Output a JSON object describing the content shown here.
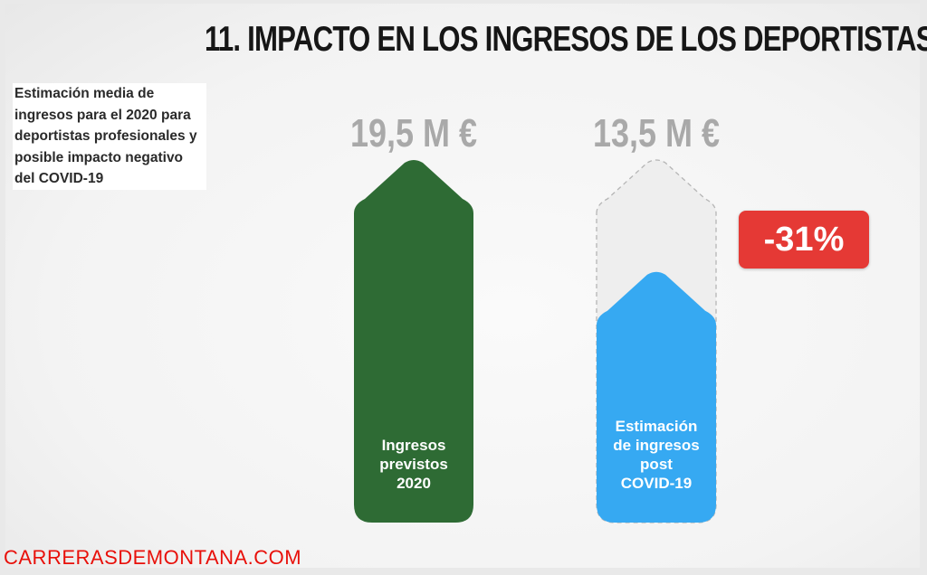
{
  "title": "11. IMPACTO EN LOS INGRESOS DE LOS DEPORTISTAS",
  "subtitle": "Estimación media de ingresos para el 2020 para deportistas profesionales y posible impacto negativo del COVID-19",
  "source": "CARRERASDEMONTANA.COM",
  "chart_data": {
    "type": "bar",
    "unit": "M €",
    "ylim": [
      0,
      19.5
    ],
    "categories": [
      "Ingresos previstos 2020",
      "Estimación de ingresos post COVID-19"
    ],
    "bars": [
      {
        "value": 19.5,
        "value_label": "19,5 M €",
        "label_lines": [
          "Ingresos",
          "previstos",
          "2020"
        ],
        "color": "#2e6b34"
      },
      {
        "value": 13.5,
        "value_label": "13,5 M €",
        "label_lines": [
          "Estimación",
          "de ingresos",
          "post",
          "COVID-19"
        ],
        "color": "#36a9f2"
      }
    ],
    "change_label": "-31%",
    "change_color": "#e53935",
    "grid": false,
    "legend": "none"
  }
}
